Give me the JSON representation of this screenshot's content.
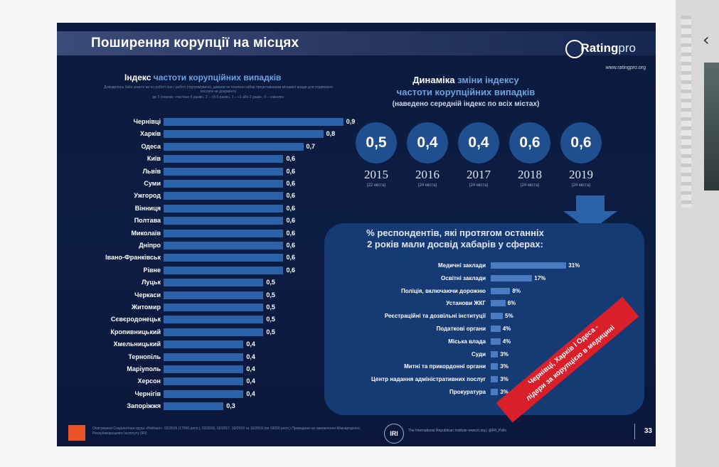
{
  "slide": {
    "title": "Поширення корупції на місцях",
    "logo_text": "Rating",
    "logo_suffix": "pro",
    "logo_url": "www.ratingpro.org",
    "page_number": "33"
  },
  "left_chart": {
    "title_bold": "Індекс",
    "title_rest": "частоти корупційних випадків",
    "description": "Доводилось і/або знаєте ви по роботі пол / роботі (підтримувати), давали чи платили хабар представникам місцевої влади для отримання послуги чи документу",
    "scale": "де 3 означає «частіше 5 разів», 2 – «3-5 разів», 1 – «1 або 2 рази», 0 – «ніколи»",
    "chart_data": {
      "type": "bar",
      "categories": [
        "Чернівці",
        "Харків",
        "Одеса",
        "Київ",
        "Львів",
        "Суми",
        "Ужгород",
        "Вінниця",
        "Полтава",
        "Миколаїв",
        "Дніпро",
        "Івано-Франківськ",
        "Рівне",
        "Луцьк",
        "Черкаси",
        "Житомир",
        "Сєвєродонецьк",
        "Кропивницький",
        "Хмельницький",
        "Тернопіль",
        "Маріуполь",
        "Херсон",
        "Чернігів",
        "Запоріжжя"
      ],
      "values": [
        0.9,
        0.8,
        0.7,
        0.6,
        0.6,
        0.6,
        0.6,
        0.6,
        0.6,
        0.6,
        0.6,
        0.6,
        0.6,
        0.5,
        0.5,
        0.5,
        0.5,
        0.5,
        0.4,
        0.4,
        0.4,
        0.4,
        0.4,
        0.3
      ],
      "labels": [
        "0,9",
        "0,8",
        "0,7",
        "0,6",
        "0,6",
        "0,6",
        "0,6",
        "0,6",
        "0,6",
        "0,6",
        "0,6",
        "0,6",
        "0,6",
        "0,5",
        "0,5",
        "0,5",
        "0,5",
        "0,5",
        "0,4",
        "0,4",
        "0,4",
        "0,4",
        "0,4",
        "0,3"
      ],
      "xlim": [
        0,
        1
      ]
    }
  },
  "dynamics": {
    "title_bold": "Динаміка",
    "title_rest_1": "зміни індексу",
    "title_line2": "частоти корупційних випадків",
    "subtitle": "(наведено середній індекс по всіх містах)",
    "items": [
      {
        "value": "0,5",
        "year": "2015",
        "note": "(22 міста)"
      },
      {
        "value": "0,4",
        "year": "2016",
        "note": "(24 міста)"
      },
      {
        "value": "0,4",
        "year": "2017",
        "note": "(24 міста)"
      },
      {
        "value": "0,6",
        "year": "2018",
        "note": "(24 міста)"
      },
      {
        "value": "0,6",
        "year": "2019",
        "note": "(24 міста)"
      }
    ]
  },
  "bribes": {
    "title_line1": "% респондентів, які протягом останніх",
    "title_line2": "2 років мали досвід хабарів у сферах:",
    "chart_data": {
      "type": "bar",
      "categories": [
        "Медичні заклади",
        "Освітні заклади",
        "Поліція, включаючи дорожню",
        "Установи ЖКГ",
        "Реєстраційні та дозвільні інституції",
        "Податкові органи",
        "Міська влада",
        "Суди",
        "Митні та прикордонні органи",
        "Центр надання адміністративних послуг",
        "Прокуратура"
      ],
      "values": [
        31,
        17,
        8,
        6,
        5,
        4,
        4,
        3,
        3,
        3,
        3
      ],
      "labels": [
        "31%",
        "17%",
        "8%",
        "6%",
        "5%",
        "4%",
        "4%",
        "3%",
        "3%",
        "3%",
        "3%"
      ],
      "xlim": [
        0,
        35
      ]
    }
  },
  "banner": {
    "line1": "Чернівці, Харків і Одеса -",
    "line2": "лідери за корупцією в медицині"
  },
  "footer": {
    "footnote": "Опитування Соціологічна група «Рейтинг»: 02/2015 (17000 респ.), 02/2016, 02/2017, 02/2018 та 10/2019 (по 19200 респ.) Проведене на замовлення Міжнародного Республіканського Інституту (IRI)",
    "iri_logo": "IRI",
    "iri_text": "The International Republican Institute www.iri.org | @IRI_Polls"
  },
  "colors": {
    "slide_bg": "#0c1d44",
    "bar": "#2b62a8",
    "circle": "#1f4f8f",
    "banner": "#d81f2a",
    "accent": "#6ea3e0"
  }
}
